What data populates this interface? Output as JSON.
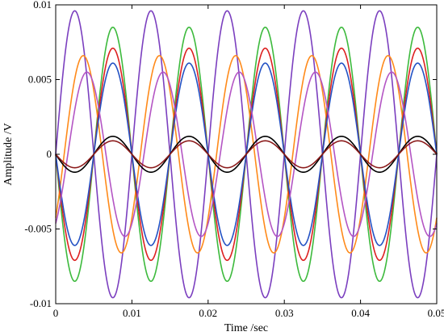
{
  "chart_data": {
    "type": "line",
    "title": "",
    "xlabel": "Time /sec",
    "ylabel": "Amplitude /V",
    "xlim": [
      0,
      0.05
    ],
    "ylim": [
      -0.01,
      0.01
    ],
    "x_ticks": [
      0,
      0.01,
      0.02,
      0.03,
      0.04,
      0.05
    ],
    "x_tick_labels": [
      "0",
      "0.01",
      "0.02",
      "0.03",
      "0.04",
      "0.05"
    ],
    "y_ticks": [
      -0.01,
      -0.005,
      0,
      0.005,
      0.01
    ],
    "y_tick_labels": [
      "-0.01",
      "-0.005",
      "0",
      "0.005",
      "0.01"
    ],
    "grid": false,
    "legend": "none",
    "frequency_hz": 100,
    "series": [
      {
        "color": "#7b3fbf",
        "amplitude": 0.0096,
        "phase": 0
      },
      {
        "color": "#3dba3d",
        "amplitude": 0.0085,
        "phase": 3.1416
      },
      {
        "color": "#ff8a1a",
        "amplitude": 0.0066,
        "phase": -0.7
      },
      {
        "color": "#dd2020",
        "amplitude": 0.0071,
        "phase": 3.1416
      },
      {
        "color": "#2452c4",
        "amplitude": 0.0061,
        "phase": 3.1416
      },
      {
        "color": "#b455c4",
        "amplitude": 0.0055,
        "phase": -1.0
      },
      {
        "color": "#000000",
        "amplitude": 0.0012,
        "phase": 3.1416
      },
      {
        "color": "#8b1a1a",
        "amplitude": 0.0009,
        "phase": 3.1416
      }
    ]
  }
}
